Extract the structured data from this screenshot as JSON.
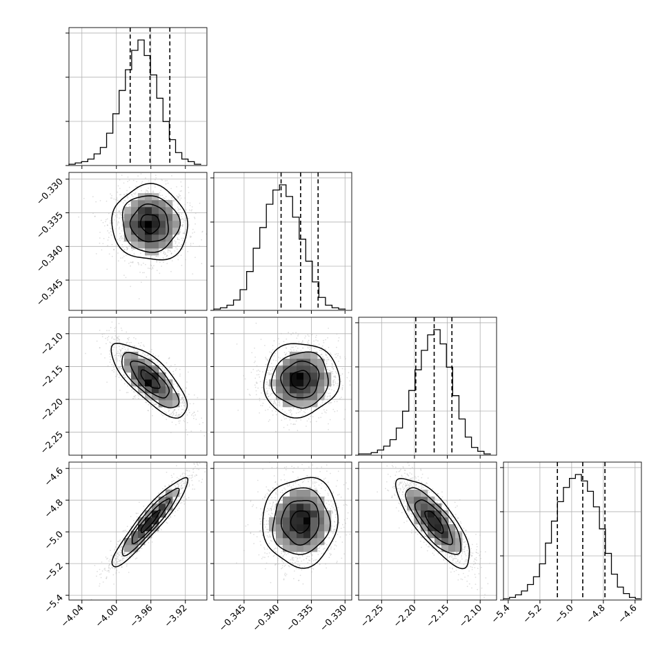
{
  "chart_data": {
    "type": "corner",
    "parameters": [
      {
        "range": [
          -4.055,
          -3.895
        ],
        "ticks": [
          -4.04,
          -4.0,
          -3.96,
          -3.92
        ],
        "tick_labels": [
          "−4.04",
          "−4.00",
          "−3.96",
          "−3.92"
        ],
        "quantiles": [
          -3.984,
          -3.961,
          -3.938
        ],
        "mean": -3.961,
        "sd": 0.022
      },
      {
        "range": [
          -0.3495,
          -0.329
        ],
        "ticks": [
          -0.345,
          -0.34,
          -0.335,
          -0.33
        ],
        "tick_labels": [
          "−0.345",
          "−0.340",
          "−0.335",
          "−0.330"
        ],
        "quantiles": [
          -0.3395,
          -0.3366,
          -0.334
        ],
        "mean": -0.3366,
        "sd": 0.0028
      },
      {
        "range": [
          -2.285,
          -2.075
        ],
        "ticks": [
          -2.25,
          -2.2,
          -2.15,
          -2.1
        ],
        "tick_labels": [
          "−2.25",
          "−2.20",
          "−2.15",
          "−2.10"
        ],
        "quantiles": [
          -2.198,
          -2.17,
          -2.143
        ],
        "mean": -2.17,
        "sd": 0.028
      },
      {
        "range": [
          -5.43,
          -4.56
        ],
        "ticks": [
          -5.4,
          -5.2,
          -5.0,
          -4.8,
          -4.6
        ],
        "tick_labels": [
          "−5.4",
          "−5.2",
          "−5.0",
          "−4.8",
          "−4.6"
        ],
        "quantiles": [
          -5.09,
          -4.93,
          -4.79
        ],
        "mean": -4.935,
        "sd": 0.14
      }
    ],
    "histograms": [
      {
        "param": 0,
        "counts": [
          1,
          2,
          3,
          5,
          9,
          14,
          25,
          40,
          58,
          74,
          89,
          97,
          85,
          70,
          52,
          34,
          20,
          10,
          5,
          3,
          1,
          0
        ]
      },
      {
        "param": 1,
        "counts": [
          1,
          2,
          4,
          8,
          16,
          30,
          48,
          64,
          82,
          93,
          97,
          88,
          72,
          55,
          38,
          22,
          10,
          4,
          2,
          1,
          0
        ]
      },
      {
        "param": 2,
        "counts": [
          1,
          1,
          2,
          4,
          7,
          12,
          21,
          34,
          50,
          66,
          81,
          93,
          97,
          86,
          68,
          46,
          28,
          14,
          6,
          3,
          1,
          0
        ]
      },
      {
        "param": 3,
        "counts": [
          1,
          2,
          4,
          7,
          12,
          18,
          28,
          44,
          61,
          76,
          87,
          94,
          97,
          92,
          84,
          72,
          55,
          36,
          20,
          10,
          5,
          2,
          1
        ]
      }
    ],
    "correlations": {
      "1-0": -0.05,
      "2-0": -0.75,
      "2-1": 0.05,
      "3-0": 0.93,
      "3-1": 0.05,
      "3-2": -0.78
    },
    "contour_levels_sigma": [
      0.5,
      1.0,
      1.5,
      2.0
    ],
    "grid": true,
    "colors": {
      "points": "#b5b5b5",
      "hist_line": "#000000",
      "quantile_line": "#000000",
      "density_dark": "#000000",
      "density_light": "#ffffff"
    }
  }
}
